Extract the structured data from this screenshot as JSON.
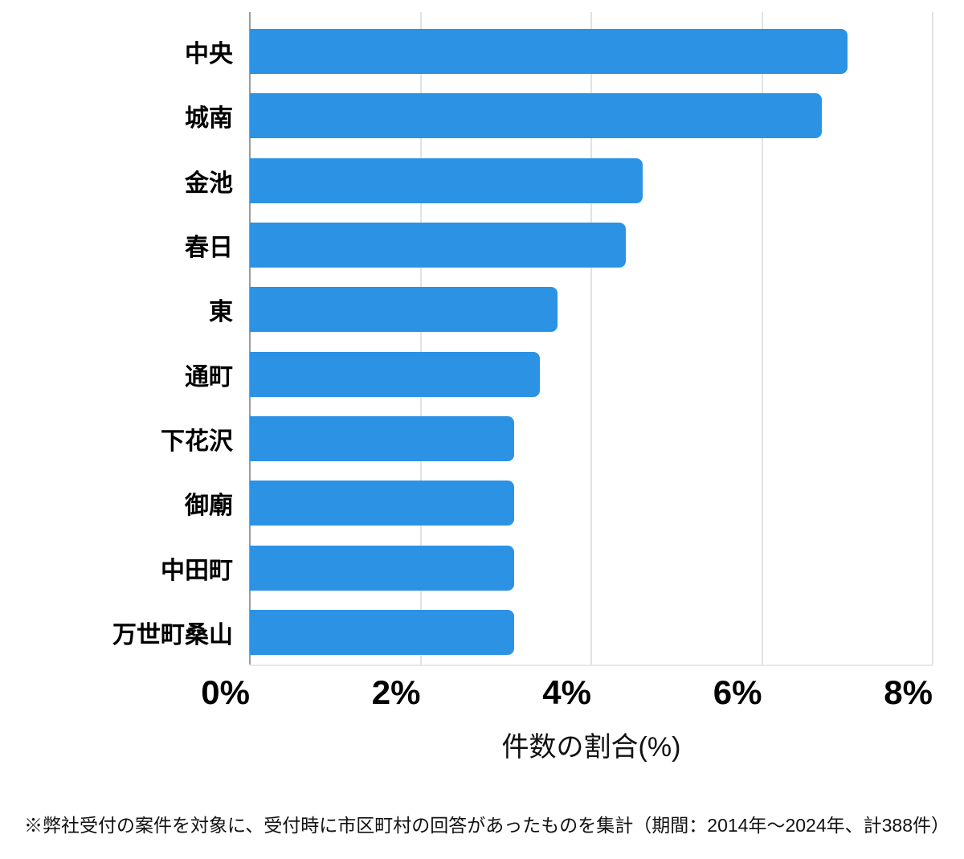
{
  "chart_data": {
    "type": "bar",
    "orientation": "horizontal",
    "title": "",
    "categories": [
      "中央",
      "城南",
      "金池",
      "春日",
      "東",
      "通町",
      "下花沢",
      "御廟",
      "中田町",
      "万世町桑山"
    ],
    "values": [
      7.0,
      6.7,
      4.6,
      4.4,
      3.6,
      3.4,
      3.1,
      3.1,
      3.1,
      3.1
    ],
    "xlabel": "件数の割合(%)",
    "ylabel": "",
    "xlim": [
      0,
      8
    ],
    "x_tick_values": [
      0,
      2,
      4,
      6,
      8
    ],
    "x_tick_labels": [
      "0%",
      "2%",
      "4%",
      "6%",
      "8%"
    ],
    "grid": true,
    "legend": false,
    "bar_color": "#2b92e4",
    "gridline_color": "#e2e2e2",
    "zero_line_color": "#9c9c9c"
  },
  "footnote": "※弊社受付の案件を対象に、受付時に市区町村の回答があったものを集計（期間：2014年～2024年、計388件）"
}
